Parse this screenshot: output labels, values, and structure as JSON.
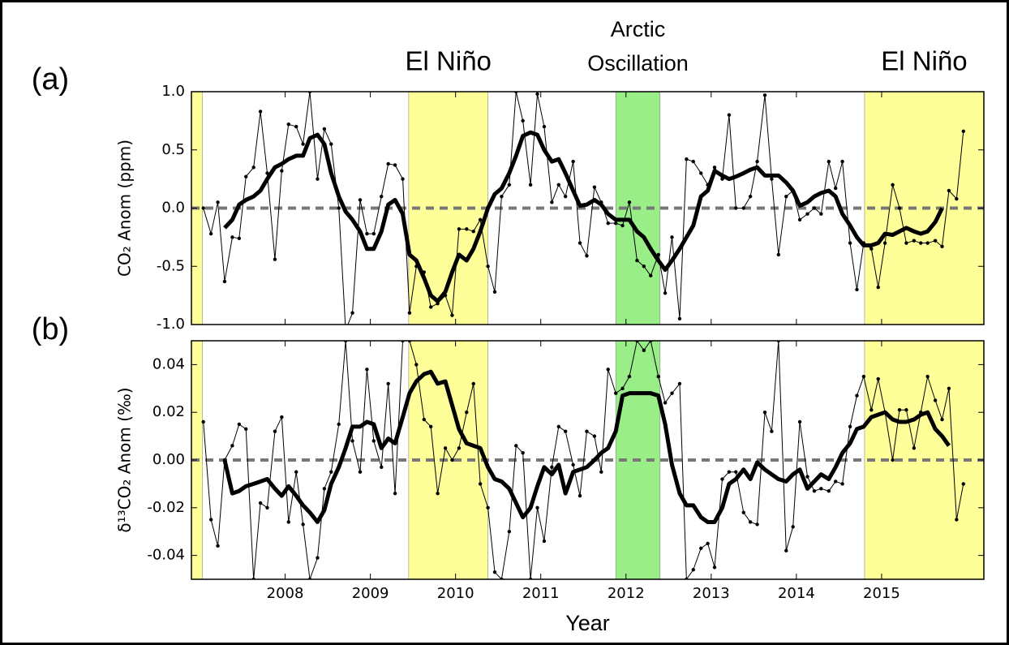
{
  "chart_data": [
    {
      "type": "line",
      "panel_label": "(a)",
      "y_label": "CO₂ Anom (ppm)",
      "xlim": [
        2006.9,
        2016.2
      ],
      "xticks": [
        2008,
        2009,
        2010,
        2011,
        2012,
        2013,
        2014,
        2015
      ],
      "ylim": [
        -1.0,
        1.0
      ],
      "yticks": [
        {
          "value": -1.0,
          "label": "-1.0"
        },
        -0.5,
        {
          "value": 0.0,
          "label": "0.0"
        },
        0.5,
        {
          "value": 1.0,
          "label": "1.0"
        }
      ],
      "zero_line": true,
      "bands": [
        {
          "from": 2006.9,
          "to": 2007.03,
          "color": "#ffff99"
        },
        {
          "from": 2009.45,
          "to": 2010.38,
          "color": "#ffff99",
          "label": [
            "El Niño"
          ]
        },
        {
          "from": 2011.88,
          "to": 2012.4,
          "color": "#99ee88",
          "label": [
            "Arctic",
            "Oscillation"
          ]
        },
        {
          "from": 2014.8,
          "to": 2016.2,
          "color": "#ffff99",
          "label": [
            "El Niño"
          ]
        }
      ],
      "x": [
        2007.04,
        2007.13,
        2007.21,
        2007.29,
        2007.38,
        2007.46,
        2007.54,
        2007.63,
        2007.71,
        2007.79,
        2007.88,
        2007.96,
        2008.04,
        2008.13,
        2008.21,
        2008.29,
        2008.38,
        2008.46,
        2008.54,
        2008.63,
        2008.71,
        2008.79,
        2008.88,
        2008.96,
        2009.04,
        2009.13,
        2009.21,
        2009.29,
        2009.38,
        2009.46,
        2009.54,
        2009.63,
        2009.71,
        2009.79,
        2009.88,
        2009.96,
        2010.04,
        2010.13,
        2010.21,
        2010.29,
        2010.38,
        2010.46,
        2010.54,
        2010.63,
        2010.71,
        2010.79,
        2010.88,
        2010.96,
        2011.04,
        2011.13,
        2011.21,
        2011.29,
        2011.38,
        2011.46,
        2011.54,
        2011.63,
        2011.71,
        2011.79,
        2011.88,
        2011.96,
        2012.04,
        2012.13,
        2012.21,
        2012.29,
        2012.38,
        2012.46,
        2012.54,
        2012.63,
        2012.71,
        2012.79,
        2012.88,
        2012.96,
        2013.04,
        2013.13,
        2013.21,
        2013.29,
        2013.38,
        2013.46,
        2013.54,
        2013.63,
        2013.71,
        2013.79,
        2013.88,
        2013.96,
        2014.04,
        2014.13,
        2014.21,
        2014.29,
        2014.38,
        2014.46,
        2014.54,
        2014.63,
        2014.71,
        2014.79,
        2014.88,
        2014.96,
        2015.04,
        2015.13,
        2015.21,
        2015.29,
        2015.38,
        2015.46,
        2015.54,
        2015.63,
        2015.71,
        2015.79,
        2015.88,
        2015.96
      ],
      "series": [
        {
          "color": "#000000",
          "line_width": 1,
          "markers": true,
          "values": [
            0.0,
            -0.22,
            0.05,
            -0.63,
            -0.25,
            -0.26,
            0.27,
            0.35,
            0.83,
            0.3,
            -0.44,
            0.32,
            0.72,
            0.7,
            0.55,
            1.0,
            0.25,
            0.68,
            0.55,
            0.0,
            -1.05,
            -0.9,
            0.07,
            -0.22,
            -0.22,
            0.1,
            0.38,
            0.37,
            0.25,
            -0.9,
            -0.5,
            -0.55,
            -0.85,
            -0.82,
            -0.75,
            -0.92,
            -0.18,
            -0.18,
            -0.2,
            -0.1,
            -0.5,
            -0.72,
            0.1,
            0.2,
            1.0,
            0.75,
            0.2,
            0.98,
            0.7,
            0.05,
            0.2,
            0.1,
            0.4,
            -0.3,
            -0.41,
            0.18,
            0.05,
            -0.13,
            -0.13,
            -0.15,
            0.05,
            -0.45,
            -0.5,
            -0.58,
            -0.4,
            -0.73,
            -0.25,
            -0.95,
            0.42,
            0.4,
            0.3,
            0.2,
            0.35,
            0.25,
            0.8,
            0.0,
            0.0,
            0.1,
            0.4,
            0.97,
            0.25,
            -0.4,
            0.1,
            0.15,
            -0.1,
            -0.05,
            0.0,
            -0.05,
            0.4,
            0.17,
            0.4,
            -0.3,
            -0.7,
            -0.3,
            -0.35,
            -0.68,
            -0.3,
            0.2,
            0.0,
            -0.3,
            -0.28,
            -0.3,
            -0.3,
            -0.28,
            -0.33,
            0.15,
            0.08,
            0.66
          ]
        },
        {
          "color": "#000000",
          "line_width": 5,
          "markers": false,
          "values": [
            null,
            null,
            null,
            -0.17,
            -0.1,
            0.03,
            0.07,
            0.1,
            0.15,
            0.25,
            0.35,
            0.38,
            0.42,
            0.45,
            0.45,
            0.6,
            0.63,
            0.55,
            0.3,
            0.1,
            -0.03,
            -0.1,
            -0.2,
            -0.35,
            -0.35,
            -0.2,
            0.03,
            0.07,
            -0.05,
            -0.4,
            -0.45,
            -0.6,
            -0.75,
            -0.8,
            -0.72,
            -0.55,
            -0.4,
            -0.45,
            -0.35,
            -0.2,
            0.0,
            0.12,
            0.17,
            0.3,
            0.45,
            0.62,
            0.65,
            0.63,
            0.5,
            0.4,
            0.42,
            0.3,
            0.15,
            0.02,
            0.03,
            0.07,
            0.03,
            -0.05,
            -0.1,
            -0.1,
            -0.1,
            -0.2,
            -0.25,
            -0.35,
            -0.45,
            -0.53,
            -0.45,
            -0.35,
            -0.25,
            -0.15,
            0.1,
            0.15,
            0.32,
            0.28,
            0.25,
            0.27,
            0.3,
            0.33,
            0.35,
            0.28,
            0.28,
            0.28,
            0.22,
            0.15,
            0.02,
            0.05,
            0.1,
            0.13,
            0.15,
            0.1,
            -0.05,
            -0.15,
            -0.25,
            -0.32,
            -0.32,
            -0.3,
            -0.22,
            -0.23,
            -0.2,
            -0.17,
            -0.2,
            -0.22,
            -0.2,
            -0.12,
            0.0,
            null,
            null,
            null
          ]
        }
      ]
    },
    {
      "type": "line",
      "panel_label": "(b)",
      "y_label": "δ¹³CO₂ Anom (‰)",
      "x_label": "Year",
      "xlim": [
        2006.9,
        2016.2
      ],
      "xticks": [
        2008,
        2009,
        2010,
        2011,
        2012,
        2013,
        2014,
        2015
      ],
      "ylim": [
        -0.05,
        0.05
      ],
      "yticks": [
        -0.04,
        -0.02,
        {
          "value": 0.0,
          "label": "0.00"
        },
        0.02,
        0.04
      ],
      "zero_line": true,
      "bands": [
        {
          "from": 2006.9,
          "to": 2007.03,
          "color": "#ffff99"
        },
        {
          "from": 2009.45,
          "to": 2010.38,
          "color": "#ffff99"
        },
        {
          "from": 2011.88,
          "to": 2012.4,
          "color": "#99ee88"
        },
        {
          "from": 2014.8,
          "to": 2016.2,
          "color": "#ffff99"
        }
      ],
      "x": [
        2007.04,
        2007.13,
        2007.21,
        2007.29,
        2007.38,
        2007.46,
        2007.54,
        2007.63,
        2007.71,
        2007.79,
        2007.88,
        2007.96,
        2008.04,
        2008.13,
        2008.21,
        2008.29,
        2008.38,
        2008.46,
        2008.54,
        2008.63,
        2008.71,
        2008.79,
        2008.88,
        2008.96,
        2009.04,
        2009.13,
        2009.21,
        2009.29,
        2009.38,
        2009.46,
        2009.54,
        2009.63,
        2009.71,
        2009.79,
        2009.88,
        2009.96,
        2010.04,
        2010.13,
        2010.21,
        2010.29,
        2010.38,
        2010.46,
        2010.54,
        2010.63,
        2010.71,
        2010.79,
        2010.88,
        2010.96,
        2011.04,
        2011.13,
        2011.21,
        2011.29,
        2011.38,
        2011.46,
        2011.54,
        2011.63,
        2011.71,
        2011.79,
        2011.88,
        2011.96,
        2012.04,
        2012.13,
        2012.21,
        2012.29,
        2012.38,
        2012.46,
        2012.54,
        2012.63,
        2012.71,
        2012.79,
        2012.88,
        2012.96,
        2013.04,
        2013.13,
        2013.21,
        2013.29,
        2013.38,
        2013.46,
        2013.54,
        2013.63,
        2013.71,
        2013.79,
        2013.88,
        2013.96,
        2014.04,
        2014.13,
        2014.21,
        2014.29,
        2014.38,
        2014.46,
        2014.54,
        2014.63,
        2014.71,
        2014.79,
        2014.88,
        2014.96,
        2015.04,
        2015.13,
        2015.21,
        2015.29,
        2015.38,
        2015.46,
        2015.54,
        2015.63,
        2015.71,
        2015.79,
        2015.88,
        2015.96
      ],
      "series": [
        {
          "color": "#000000",
          "line_width": 1,
          "markers": true,
          "values": [
            0.016,
            -0.025,
            -0.036,
            0.0,
            0.006,
            0.015,
            0.013,
            -0.05,
            -0.018,
            -0.02,
            0.012,
            0.018,
            -0.026,
            -0.005,
            -0.027,
            -0.05,
            -0.041,
            -0.012,
            -0.005,
            0.015,
            0.05,
            0.008,
            -0.005,
            0.038,
            0.008,
            -0.003,
            0.032,
            -0.014,
            0.05,
            0.05,
            0.04,
            0.017,
            0.014,
            -0.014,
            0.005,
            0.0,
            0.005,
            0.02,
            0.032,
            -0.01,
            -0.02,
            -0.047,
            -0.05,
            -0.03,
            0.006,
            0.003,
            -0.05,
            -0.02,
            -0.034,
            -0.003,
            0.014,
            0.012,
            -0.002,
            -0.015,
            0.012,
            0.01,
            -0.005,
            0.038,
            0.028,
            0.03,
            0.035,
            0.05,
            0.046,
            0.05,
            0.035,
            0.024,
            0.028,
            0.032,
            -0.05,
            -0.046,
            -0.037,
            -0.035,
            -0.045,
            -0.008,
            -0.005,
            -0.005,
            -0.022,
            -0.026,
            -0.027,
            0.02,
            0.012,
            0.05,
            -0.038,
            -0.028,
            0.016,
            -0.007,
            -0.013,
            -0.012,
            -0.013,
            -0.009,
            -0.01,
            0.014,
            0.027,
            0.035,
            0.021,
            0.034,
            0.02,
            0.0,
            0.021,
            0.021,
            0.005,
            0.02,
            0.035,
            0.025,
            0.017,
            0.03,
            -0.025,
            -0.01
          ]
        },
        {
          "color": "#000000",
          "line_width": 5,
          "markers": false,
          "values": [
            null,
            null,
            null,
            0.0,
            -0.014,
            -0.013,
            -0.011,
            -0.01,
            -0.009,
            -0.008,
            -0.012,
            -0.015,
            -0.011,
            -0.015,
            -0.019,
            -0.022,
            -0.026,
            -0.021,
            -0.01,
            -0.003,
            0.005,
            0.014,
            0.014,
            0.016,
            0.015,
            0.005,
            0.009,
            0.007,
            0.018,
            0.028,
            0.033,
            0.036,
            0.037,
            0.032,
            0.033,
            0.023,
            0.013,
            0.007,
            0.006,
            0.005,
            -0.003,
            -0.008,
            -0.009,
            -0.012,
            -0.018,
            -0.024,
            -0.02,
            -0.011,
            -0.003,
            -0.006,
            -0.002,
            -0.014,
            -0.005,
            -0.004,
            -0.003,
            0.0,
            0.003,
            0.005,
            0.012,
            0.027,
            0.028,
            0.028,
            0.028,
            0.028,
            0.027,
            0.015,
            -0.002,
            -0.014,
            -0.019,
            -0.019,
            -0.024,
            -0.026,
            -0.026,
            -0.02,
            -0.01,
            -0.008,
            -0.004,
            -0.008,
            -0.001,
            -0.004,
            -0.006,
            -0.008,
            -0.009,
            -0.006,
            -0.004,
            -0.012,
            -0.009,
            -0.006,
            -0.008,
            -0.003,
            0.003,
            0.007,
            0.013,
            0.014,
            0.018,
            0.019,
            0.02,
            0.017,
            0.016,
            0.016,
            0.017,
            0.019,
            0.02,
            0.013,
            0.01,
            0.006,
            null,
            null
          ]
        }
      ]
    }
  ]
}
